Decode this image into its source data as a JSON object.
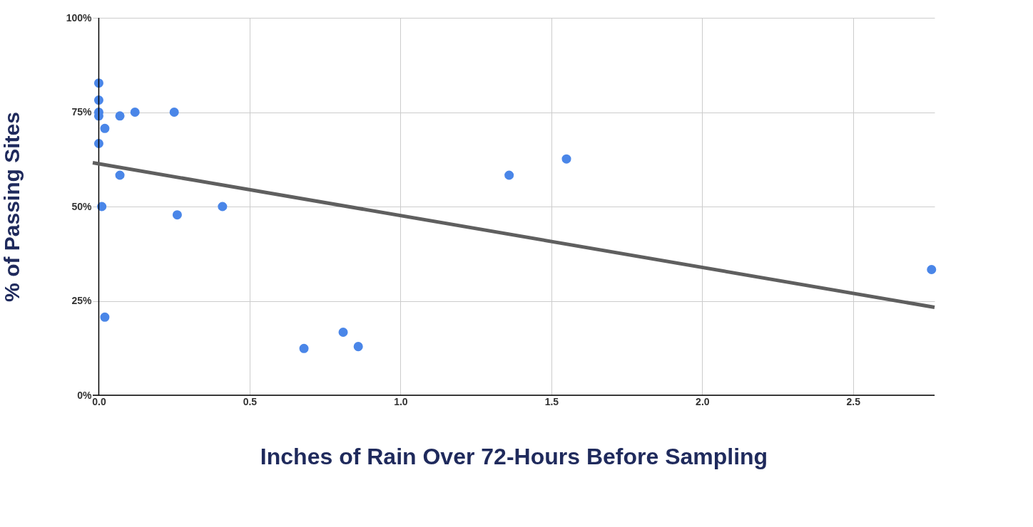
{
  "chart_data": {
    "type": "scatter",
    "xlabel": "Inches of Rain Over 72-Hours Before Sampling",
    "ylabel": "% of Passing Sites",
    "xlim": [
      -0.02,
      2.77
    ],
    "xticks": [
      {
        "value": 0,
        "label": "0.0"
      },
      0.5,
      {
        "value": 1,
        "label": "1.0"
      },
      1.5,
      {
        "value": 2,
        "label": "2.0"
      },
      2.5
    ],
    "ylim": [
      0,
      100
    ],
    "yticks": [
      {
        "value": 0,
        "label": "0%"
      },
      {
        "value": 25,
        "label": "25%"
      },
      {
        "value": 50,
        "label": "50%"
      },
      {
        "value": 75,
        "label": "75%"
      },
      {
        "value": 100,
        "label": "100%"
      }
    ],
    "grid": true,
    "series": [
      {
        "color": "#4a86e8",
        "marker": "circle",
        "x": [
          0,
          0,
          0,
          0,
          0,
          0.07,
          0.12,
          0.25,
          0.02,
          0.07,
          0.01,
          0.26,
          0.41,
          0.02,
          0.68,
          0.81,
          0.86,
          1.36,
          1.55,
          2.76
        ],
        "values": [
          82.7,
          78.2,
          75,
          74,
          66.7,
          74,
          75,
          75,
          70.7,
          58.3,
          50,
          47.8,
          50,
          20.7,
          12.4,
          16.7,
          12.9,
          58.3,
          62.6,
          33.3
        ]
      },
      {
        "type": "line",
        "color": "#5f5f5f",
        "x": [
          -0.02,
          2.77
        ],
        "values": [
          61.6,
          23.3
        ]
      }
    ]
  }
}
